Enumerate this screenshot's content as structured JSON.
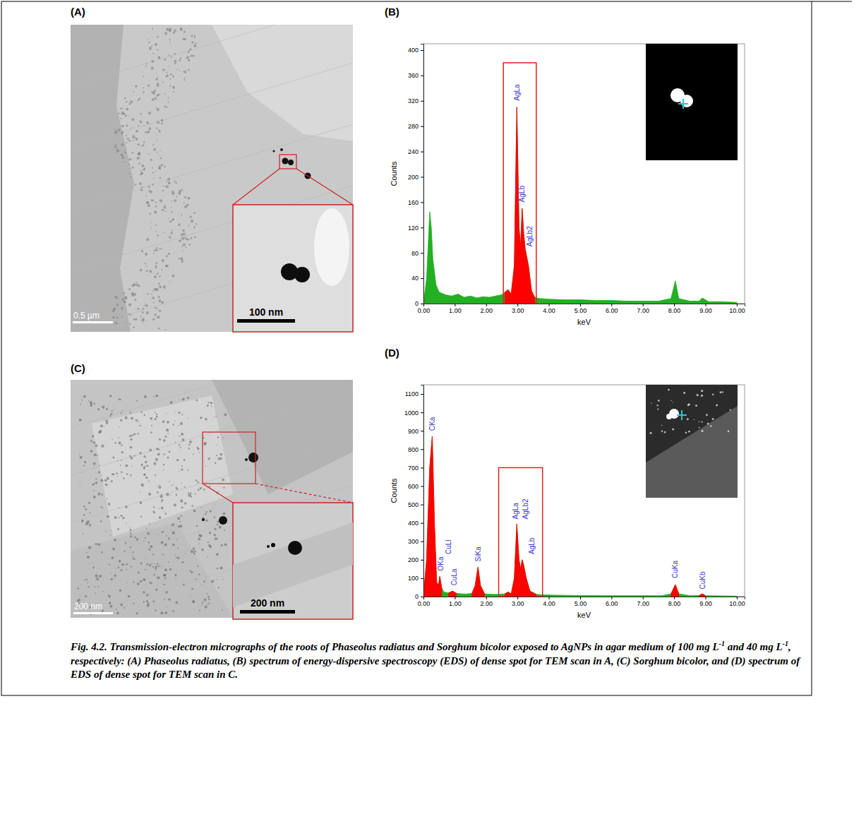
{
  "figure": {
    "micrographs": [
      {
        "label": "(A)",
        "scale_bar": "0.5 µm",
        "inset_scale_bar": "100 nm"
      },
      {
        "label": "(C)",
        "scale_bar": "200 nm",
        "inset_scale_bar": "200 nm"
      }
    ]
  },
  "chart_data": [
    {
      "type": "area",
      "panel": "(B)",
      "xlabel": "keV",
      "ylabel": "Counts",
      "x": [
        0,
        0.1,
        0.2,
        0.25,
        0.3,
        0.4,
        0.5,
        0.7,
        0.9,
        1.1,
        1.3,
        1.5,
        1.7,
        1.9,
        2.1,
        2.3,
        2.5,
        2.6,
        2.7,
        2.8,
        2.9,
        2.98,
        3.05,
        3.1,
        3.15,
        3.2,
        3.25,
        3.35,
        3.45,
        3.55,
        3.7,
        4,
        4.5,
        5,
        5.5,
        6,
        6.5,
        7,
        7.5,
        7.9,
        8.04,
        8.15,
        8.5,
        8.8,
        8.9,
        9.1,
        9.5,
        10
      ],
      "series": [
        {
          "color": "#22b022",
          "values": [
            0,
            40,
            145,
            120,
            70,
            30,
            18,
            14,
            12,
            15,
            10,
            12,
            9,
            11,
            10,
            12,
            14,
            18,
            22,
            15,
            60,
            310,
            120,
            90,
            150,
            110,
            85,
            60,
            20,
            10,
            8,
            7,
            6,
            6,
            5,
            5,
            4,
            4,
            4,
            8,
            36,
            8,
            4,
            4,
            9,
            3,
            3,
            2
          ]
        },
        {
          "color": "#ff0000",
          "values": [
            null,
            null,
            null,
            null,
            null,
            null,
            null,
            null,
            null,
            null,
            null,
            null,
            null,
            null,
            null,
            null,
            null,
            18,
            22,
            15,
            60,
            310,
            120,
            90,
            150,
            110,
            85,
            60,
            20,
            10,
            null,
            null,
            null,
            null,
            null,
            null,
            null,
            null,
            null,
            null,
            null,
            null,
            null,
            null,
            null,
            null,
            null,
            null
          ]
        }
      ],
      "xlim": [
        0,
        10.25
      ],
      "ylim": [
        0,
        410
      ],
      "xticks": [
        {
          "value": 0,
          "label": "0.00"
        },
        {
          "value": 1,
          "label": "1.00"
        },
        {
          "value": 2,
          "label": "2.00"
        },
        {
          "value": 3,
          "label": "3.00"
        },
        {
          "value": 4,
          "label": "4.00"
        },
        {
          "value": 5,
          "label": "5.00"
        },
        {
          "value": 6,
          "label": "6.00"
        },
        {
          "value": 7,
          "label": "7.00"
        },
        {
          "value": 8,
          "label": "8.00"
        },
        {
          "value": 9,
          "label": "9.00"
        },
        {
          "value": 10,
          "label": "10.00"
        }
      ],
      "yticks": [
        0,
        40,
        80,
        120,
        160,
        200,
        240,
        280,
        320,
        360,
        400
      ],
      "annotations": [
        {
          "text": "AgLa",
          "x": 2.98,
          "y": 320
        },
        {
          "text": "AgLb",
          "x": 3.15,
          "y": 160
        },
        {
          "text": "AgLb2",
          "x": 3.4,
          "y": 90
        }
      ],
      "highlight": {
        "x": [
          2.55,
          3.6
        ],
        "y": [
          0,
          380
        ]
      }
    },
    {
      "type": "area",
      "panel": "(D)",
      "xlabel": "keV",
      "ylabel": "Counts",
      "x": [
        0,
        0.1,
        0.2,
        0.28,
        0.35,
        0.42,
        0.48,
        0.52,
        0.58,
        0.65,
        0.8,
        0.93,
        1.05,
        1.2,
        1.4,
        1.55,
        1.65,
        1.74,
        1.82,
        1.95,
        2.2,
        2.4,
        2.6,
        2.7,
        2.8,
        2.9,
        2.98,
        3.05,
        3.1,
        3.15,
        3.2,
        3.28,
        3.4,
        3.6,
        3.8,
        4.2,
        5,
        6,
        7,
        7.6,
        7.9,
        8.04,
        8.15,
        8.5,
        8.8,
        8.9,
        9,
        9.5,
        10
      ],
      "series": [
        {
          "color": "#22b022",
          "values": [
            0,
            200,
            700,
            870,
            400,
            80,
            60,
            110,
            50,
            25,
            20,
            30,
            18,
            15,
            14,
            18,
            60,
            160,
            60,
            15,
            12,
            12,
            15,
            25,
            15,
            100,
            395,
            200,
            150,
            200,
            170,
            100,
            30,
            12,
            10,
            8,
            6,
            5,
            5,
            5,
            15,
            65,
            15,
            5,
            6,
            15,
            5,
            4,
            3
          ]
        },
        {
          "color": "#ff0000",
          "values": [
            0,
            200,
            700,
            870,
            400,
            80,
            60,
            110,
            50,
            null,
            20,
            30,
            18,
            null,
            null,
            18,
            60,
            160,
            60,
            15,
            null,
            null,
            15,
            25,
            15,
            100,
            395,
            200,
            150,
            200,
            170,
            100,
            30,
            12,
            null,
            null,
            null,
            null,
            null,
            null,
            15,
            65,
            15,
            null,
            6,
            15,
            5,
            null,
            null
          ]
        }
      ],
      "xlim": [
        0,
        10.25
      ],
      "ylim": [
        0,
        1150
      ],
      "xticks": [
        {
          "value": 0,
          "label": "0.00"
        },
        {
          "value": 1,
          "label": "1.00"
        },
        {
          "value": 2,
          "label": "2.00"
        },
        {
          "value": 3,
          "label": "3.00"
        },
        {
          "value": 4,
          "label": "4.00"
        },
        {
          "value": 5,
          "label": "5.00"
        },
        {
          "value": 6,
          "label": "6.00"
        },
        {
          "value": 7,
          "label": "7.00"
        },
        {
          "value": 8,
          "label": "8.00"
        },
        {
          "value": 9,
          "label": "9.00"
        },
        {
          "value": 10,
          "label": "10.00"
        }
      ],
      "yticks": [
        0,
        100,
        200,
        300,
        400,
        500,
        600,
        700,
        800,
        900,
        1000,
        1100
      ],
      "annotations": [
        {
          "text": "CKa",
          "x": 0.28,
          "y": 900
        },
        {
          "text": "OKa",
          "x": 0.55,
          "y": 140
        },
        {
          "text": "CuLl",
          "x": 0.8,
          "y": 230
        },
        {
          "text": "CuLa",
          "x": 0.98,
          "y": 60
        },
        {
          "text": "SiKa",
          "x": 1.74,
          "y": 190
        },
        {
          "text": "AgLa",
          "x": 2.95,
          "y": 420
        },
        {
          "text": "AgLb",
          "x": 3.45,
          "y": 230
        },
        {
          "text": "AgLb2",
          "x": 3.25,
          "y": 420
        },
        {
          "text": "CuKa",
          "x": 8.04,
          "y": 100
        },
        {
          "text": "CuKb",
          "x": 8.9,
          "y": 40
        }
      ],
      "highlight": {
        "x": [
          2.4,
          3.8
        ],
        "y": [
          0,
          700
        ]
      }
    }
  ],
  "caption": [
    {
      "text": "Fig. 4.2. Transmission-electron micrographs of the roots of Phaseolus radiatus and Sorghum bicolor exposed to AgNPs in agar medium of 100 mg L"
    },
    {
      "text": "-1",
      "sup": true
    },
    {
      "text": " and 40 mg L"
    },
    {
      "text": "-1",
      "sup": true
    },
    {
      "text": ", respectively: (A) Phaseolus radiatus, (B) spectrum of energy-dispersive spectroscopy (EDS) of dense spot for TEM scan in A, (C) Sorghum bicolor, and (D) spectrum of EDS of dense spot for TEM scan in C."
    }
  ]
}
